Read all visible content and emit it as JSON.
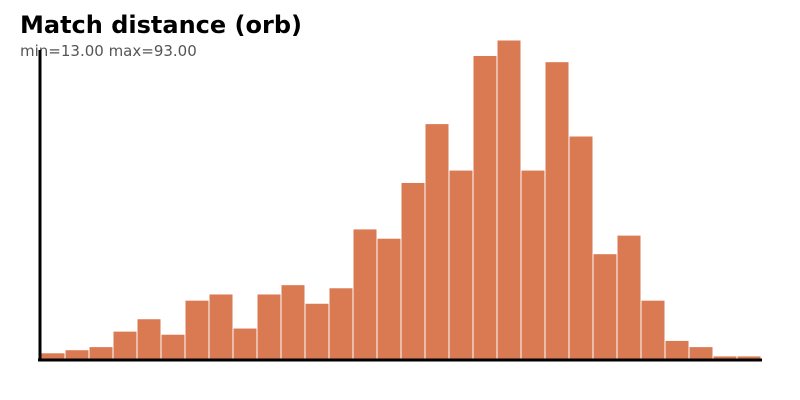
{
  "chart_data": {
    "type": "bar",
    "title": "Match distance (orb)",
    "subtitle": "min=13.00 max=93.00",
    "bar_color": "#DA7A52",
    "axis_color": "#000000",
    "grid": false,
    "legend": "none",
    "values": [
      2,
      3,
      4,
      9,
      13,
      8,
      19,
      21,
      10,
      21,
      24,
      18,
      23,
      42,
      39,
      57,
      76,
      61,
      98,
      103,
      61,
      96,
      72,
      34,
      40,
      19,
      6,
      4,
      1,
      1
    ],
    "ylim": [
      0,
      103
    ]
  }
}
